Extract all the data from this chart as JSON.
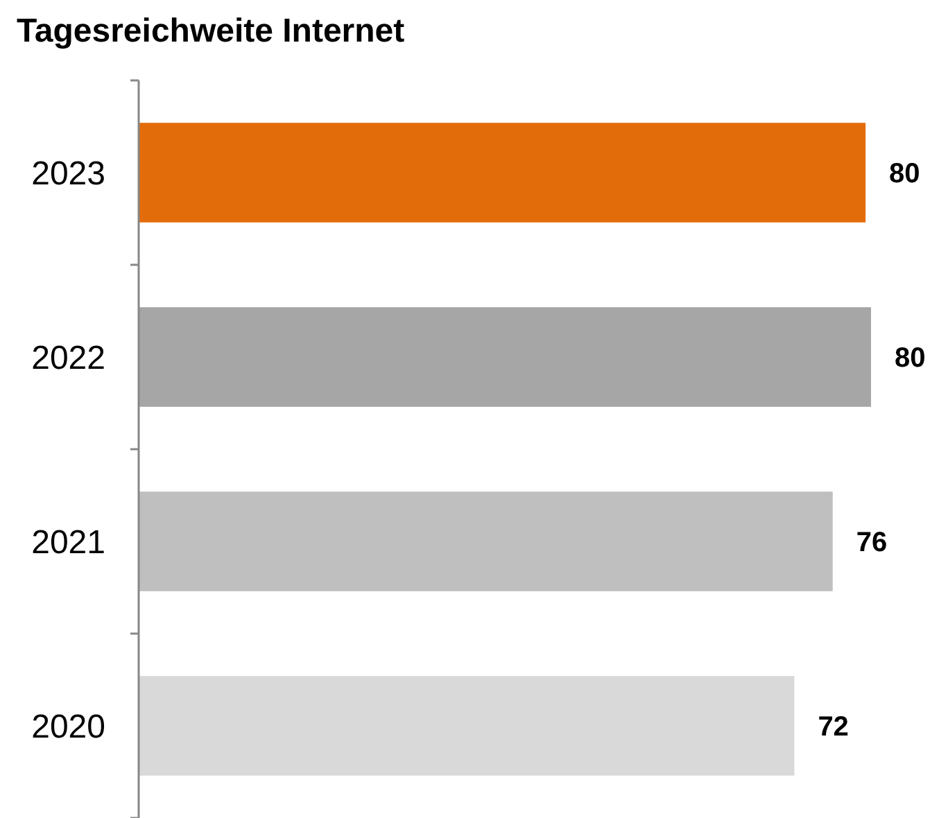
{
  "chart_data": {
    "type": "bar",
    "orientation": "horizontal",
    "title": "Tagesreichweite Internet",
    "categories": [
      "2023",
      "2022",
      "2021",
      "2020"
    ],
    "values": [
      79.6,
      80.2,
      76.0,
      71.8
    ],
    "colors": [
      "#e36c0a",
      "#a6a6a6",
      "#bfbfbf",
      "#d9d9d9"
    ],
    "value_labels": [
      "80",
      "80",
      "76",
      "72"
    ],
    "tick_labels": "y"
  }
}
